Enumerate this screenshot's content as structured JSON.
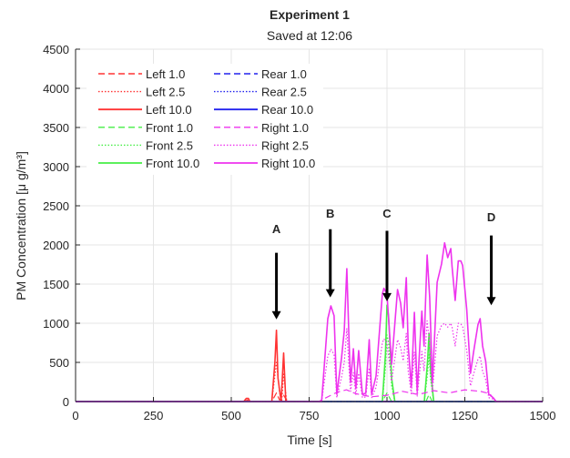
{
  "chart_data": {
    "type": "line",
    "title": "Experiment 1",
    "subtitle": "Saved at 12:06",
    "xlabel": "Time [s]",
    "ylabel": "PM Concentration [μ g/m³]",
    "xlim": [
      0,
      1500
    ],
    "ylim": [
      0,
      4500
    ],
    "xticks": [
      0,
      250,
      500,
      750,
      1000,
      1250,
      1500
    ],
    "yticks": [
      0,
      500,
      1000,
      1500,
      2000,
      2500,
      3000,
      3500,
      4000,
      4500
    ],
    "grid": true,
    "legend_placement": "top-left",
    "series": [
      {
        "name": "Left 1.0",
        "color": "#ff3333",
        "style": "dashed",
        "points": [
          [
            0,
            0
          ],
          [
            540,
            0
          ],
          [
            550,
            15
          ],
          [
            560,
            0
          ],
          [
            630,
            0
          ],
          [
            645,
            110
          ],
          [
            655,
            20
          ],
          [
            668,
            80
          ],
          [
            680,
            0
          ],
          [
            1500,
            0
          ]
        ]
      },
      {
        "name": "Left 2.5",
        "color": "#ff3333",
        "style": "dotted",
        "points": [
          [
            0,
            0
          ],
          [
            540,
            0
          ],
          [
            550,
            25
          ],
          [
            560,
            0
          ],
          [
            630,
            0
          ],
          [
            645,
            500
          ],
          [
            655,
            120
          ],
          [
            662,
            0
          ],
          [
            668,
            350
          ],
          [
            678,
            0
          ],
          [
            1500,
            0
          ]
        ]
      },
      {
        "name": "Left 10.0",
        "color": "#ff3333",
        "style": "solid",
        "points": [
          [
            0,
            0
          ],
          [
            540,
            0
          ],
          [
            548,
            40
          ],
          [
            555,
            40
          ],
          [
            560,
            0
          ],
          [
            630,
            0
          ],
          [
            640,
            500
          ],
          [
            645,
            910
          ],
          [
            650,
            300
          ],
          [
            660,
            0
          ],
          [
            668,
            620
          ],
          [
            675,
            0
          ],
          [
            1500,
            0
          ]
        ]
      },
      {
        "name": "Front 1.0",
        "color": "#44ee44",
        "style": "dashed",
        "points": [
          [
            0,
            0
          ],
          [
            985,
            0
          ],
          [
            1000,
            110
          ],
          [
            1015,
            0
          ],
          [
            1125,
            0
          ],
          [
            1135,
            90
          ],
          [
            1145,
            0
          ],
          [
            1500,
            0
          ]
        ]
      },
      {
        "name": "Front 2.5",
        "color": "#44ee44",
        "style": "dotted",
        "points": [
          [
            0,
            0
          ],
          [
            985,
            0
          ],
          [
            995,
            420
          ],
          [
            1000,
            850
          ],
          [
            1005,
            760
          ],
          [
            1015,
            200
          ],
          [
            1025,
            0
          ],
          [
            1120,
            0
          ],
          [
            1130,
            350
          ],
          [
            1135,
            600
          ],
          [
            1140,
            280
          ],
          [
            1150,
            0
          ],
          [
            1500,
            0
          ]
        ]
      },
      {
        "name": "Front 10.0",
        "color": "#44ee44",
        "style": "solid",
        "points": [
          [
            0,
            0
          ],
          [
            985,
            0
          ],
          [
            995,
            600
          ],
          [
            1000,
            1230
          ],
          [
            1005,
            1100
          ],
          [
            1015,
            300
          ],
          [
            1025,
            0
          ],
          [
            1120,
            0
          ],
          [
            1130,
            500
          ],
          [
            1135,
            870
          ],
          [
            1140,
            400
          ],
          [
            1150,
            0
          ],
          [
            1500,
            0
          ]
        ]
      },
      {
        "name": "Rear 1.0",
        "color": "#2222ee",
        "style": "dashed",
        "points": [
          [
            0,
            0
          ],
          [
            1500,
            0
          ]
        ]
      },
      {
        "name": "Rear 2.5",
        "color": "#2222ee",
        "style": "dotted",
        "points": [
          [
            0,
            0
          ],
          [
            1500,
            0
          ]
        ]
      },
      {
        "name": "Rear 10.0",
        "color": "#2222ee",
        "style": "solid",
        "points": [
          [
            0,
            0
          ],
          [
            1500,
            0
          ]
        ]
      },
      {
        "name": "Right 1.0",
        "color": "#ee33ee",
        "style": "dashed",
        "points": [
          [
            0,
            0
          ],
          [
            780,
            0
          ],
          [
            820,
            80
          ],
          [
            840,
            120
          ],
          [
            870,
            150
          ],
          [
            900,
            100
          ],
          [
            950,
            60
          ],
          [
            1000,
            80
          ],
          [
            1050,
            130
          ],
          [
            1100,
            90
          ],
          [
            1150,
            140
          ],
          [
            1200,
            110
          ],
          [
            1250,
            150
          ],
          [
            1300,
            130
          ],
          [
            1330,
            100
          ],
          [
            1350,
            0
          ],
          [
            1500,
            0
          ]
        ]
      },
      {
        "name": "Right 2.5",
        "color": "#ee33ee",
        "style": "dotted",
        "points": [
          [
            0,
            0
          ],
          [
            790,
            0
          ],
          [
            810,
            580
          ],
          [
            820,
            670
          ],
          [
            830,
            600
          ],
          [
            839,
            50
          ],
          [
            854,
            310
          ],
          [
            863,
            500
          ],
          [
            871,
            930
          ],
          [
            878,
            430
          ],
          [
            883,
            130
          ],
          [
            892,
            370
          ],
          [
            900,
            90
          ],
          [
            909,
            360
          ],
          [
            921,
            50
          ],
          [
            932,
            60
          ],
          [
            943,
            430
          ],
          [
            951,
            50
          ],
          [
            965,
            180
          ],
          [
            985,
            750
          ],
          [
            990,
            800
          ],
          [
            1000,
            750
          ],
          [
            1015,
            260
          ],
          [
            1034,
            790
          ],
          [
            1044,
            690
          ],
          [
            1052,
            520
          ],
          [
            1062,
            870
          ],
          [
            1068,
            390
          ],
          [
            1078,
            100
          ],
          [
            1088,
            630
          ],
          [
            1097,
            70
          ],
          [
            1112,
            640
          ],
          [
            1119,
            390
          ],
          [
            1129,
            1030
          ],
          [
            1137,
            730
          ],
          [
            1146,
            130
          ],
          [
            1161,
            840
          ],
          [
            1175,
            970
          ],
          [
            1185,
            1000
          ],
          [
            1195,
            950
          ],
          [
            1205,
            1000
          ],
          [
            1209,
            950
          ],
          [
            1219,
            710
          ],
          [
            1229,
            1000
          ],
          [
            1237,
            990
          ],
          [
            1243,
            960
          ],
          [
            1256,
            650
          ],
          [
            1268,
            200
          ],
          [
            1278,
            350
          ],
          [
            1292,
            540
          ],
          [
            1299,
            580
          ],
          [
            1307,
            390
          ],
          [
            1317,
            280
          ],
          [
            1327,
            50
          ],
          [
            1341,
            30
          ],
          [
            1351,
            0
          ],
          [
            1500,
            0
          ]
        ]
      },
      {
        "name": "Right 10.0",
        "color": "#ee33ee",
        "style": "solid",
        "points": [
          [
            0,
            0
          ],
          [
            790,
            0
          ],
          [
            810,
            1058
          ],
          [
            820,
            1221
          ],
          [
            830,
            1097
          ],
          [
            839,
            93
          ],
          [
            854,
            558
          ],
          [
            863,
            907
          ],
          [
            871,
            1698
          ],
          [
            878,
            790
          ],
          [
            883,
            244
          ],
          [
            892,
            674
          ],
          [
            900,
            166
          ],
          [
            909,
            651
          ],
          [
            921,
            93
          ],
          [
            932,
            108
          ],
          [
            943,
            790
          ],
          [
            951,
            93
          ],
          [
            965,
            326
          ],
          [
            985,
            1372
          ],
          [
            990,
            1446
          ],
          [
            1000,
            1372
          ],
          [
            1015,
            477
          ],
          [
            1034,
            1430
          ],
          [
            1044,
            1256
          ],
          [
            1052,
            942
          ],
          [
            1062,
            1582
          ],
          [
            1068,
            709
          ],
          [
            1078,
            186
          ],
          [
            1088,
            1140
          ],
          [
            1097,
            128
          ],
          [
            1112,
            1155
          ],
          [
            1119,
            709
          ],
          [
            1129,
            1872
          ],
          [
            1137,
            1330
          ],
          [
            1146,
            244
          ],
          [
            1161,
            1523
          ],
          [
            1175,
            1756
          ],
          [
            1185,
            2027
          ],
          [
            1195,
            1837
          ],
          [
            1205,
            1954
          ],
          [
            1209,
            1721
          ],
          [
            1219,
            1291
          ],
          [
            1229,
            1795
          ],
          [
            1237,
            1795
          ],
          [
            1243,
            1737
          ],
          [
            1256,
            1175
          ],
          [
            1268,
            360
          ],
          [
            1278,
            632
          ],
          [
            1292,
            980
          ],
          [
            1299,
            1058
          ],
          [
            1307,
            709
          ],
          [
            1317,
            515
          ],
          [
            1327,
            93
          ],
          [
            1341,
            50
          ],
          [
            1351,
            0
          ],
          [
            1500,
            0
          ]
        ]
      }
    ],
    "annotations": [
      {
        "label": "A",
        "x": 645,
        "label_y": 2150,
        "arrow_from": 1900,
        "arrow_to": 1050
      },
      {
        "label": "B",
        "x": 818,
        "label_y": 2350,
        "arrow_from": 2200,
        "arrow_to": 1330
      },
      {
        "label": "C",
        "x": 1000,
        "label_y": 2350,
        "arrow_from": 2180,
        "arrow_to": 1280
      },
      {
        "label": "D",
        "x": 1335,
        "label_y": 2300,
        "arrow_from": 2120,
        "arrow_to": 1230
      }
    ]
  }
}
